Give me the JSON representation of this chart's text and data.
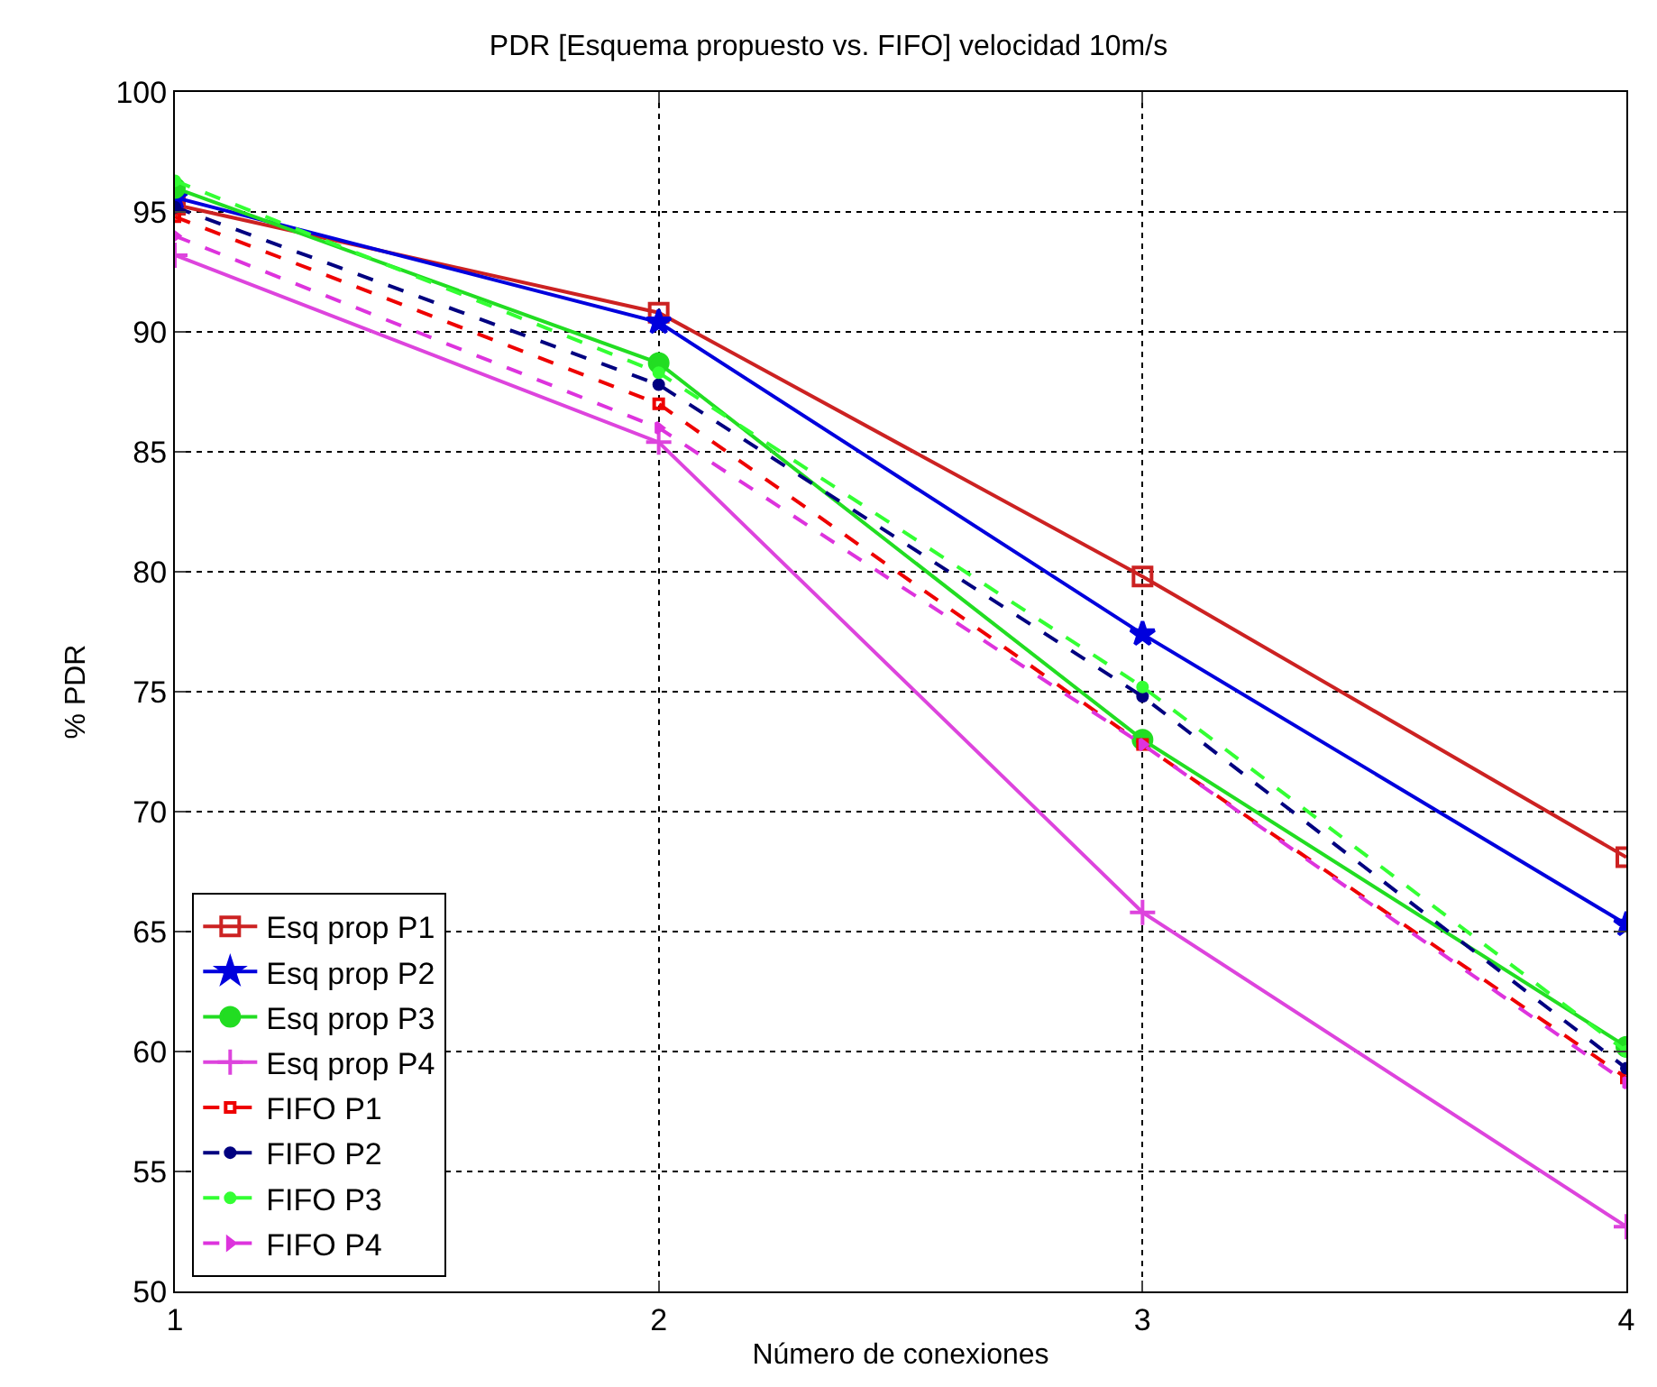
{
  "chart_data": {
    "type": "line",
    "title": "PDR [Esquema propuesto vs. FIFO] velocidad 10m/s",
    "xlabel": "Número de conexiones",
    "ylabel": "% PDR",
    "x": [
      1,
      2,
      3,
      4
    ],
    "xlim": [
      1,
      4
    ],
    "xticks": [
      1,
      2,
      3,
      4
    ],
    "ylim": [
      50,
      100
    ],
    "yticks": [
      50,
      55,
      60,
      65,
      70,
      75,
      80,
      85,
      90,
      95,
      100
    ],
    "grid": true,
    "legend": "bottom left",
    "series": [
      {
        "name": "Esq prop P1",
        "color": "#cc2222",
        "marker": "square",
        "line_style": "solid",
        "values": [
          95.3,
          90.8,
          79.8,
          68.1
        ]
      },
      {
        "name": "Esq prop P2",
        "color": "#0000dd",
        "marker": "star",
        "line_style": "solid",
        "values": [
          95.6,
          90.4,
          77.4,
          65.3
        ]
      },
      {
        "name": "Esq prop P3",
        "color": "#22dd22",
        "marker": "circle",
        "line_style": "solid",
        "values": [
          96,
          88.7,
          73,
          60.2
        ]
      },
      {
        "name": "Esq prop P4",
        "color": "#dd44dd",
        "marker": "cross",
        "line_style": "solid",
        "values": [
          93.2,
          85.4,
          65.8,
          52.7
        ]
      },
      {
        "name": "FIFO P1",
        "color": "#ee0000",
        "marker": "square",
        "line_style": "dashed",
        "values": [
          94.8,
          87,
          72.8,
          58.9
        ]
      },
      {
        "name": "FIFO P2",
        "color": "#000080",
        "marker": "circle",
        "line_style": "dashed",
        "values": [
          95.2,
          87.8,
          74.8,
          59.3
        ]
      },
      {
        "name": "FIFO P3",
        "color": "#33ff33",
        "marker": "circle",
        "line_style": "dashed",
        "values": [
          96.3,
          88.3,
          75.2,
          60
        ]
      },
      {
        "name": "FIFO P4",
        "color": "#dd33dd",
        "marker": "triangle",
        "line_style": "dashed",
        "values": [
          94,
          86,
          72.8,
          58.7
        ]
      }
    ]
  }
}
